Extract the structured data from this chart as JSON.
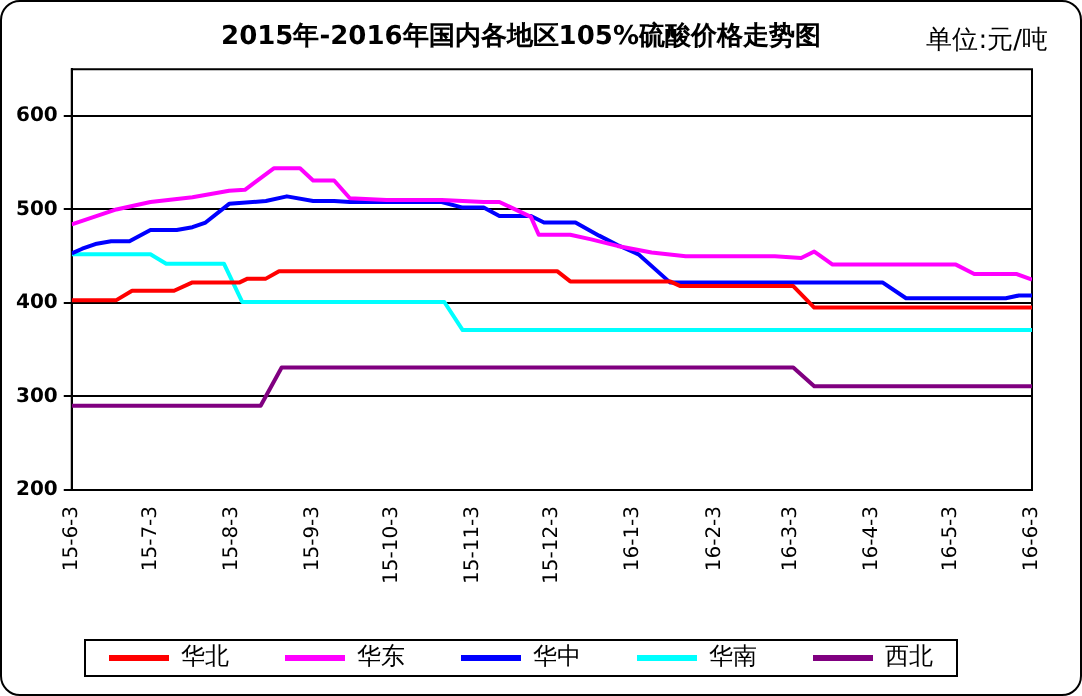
{
  "chart_data": {
    "type": "line",
    "title": "2015年-2016年国内各地区105%硫酸价格走势图",
    "annotations": [
      "单位:元/吨"
    ],
    "xlim": [
      "2015-06-03",
      "2016-06-03"
    ],
    "xticks": [
      {
        "value": "2015-06-03",
        "label": "15-6-3"
      },
      {
        "value": "2015-07-03",
        "label": "15-7-3"
      },
      {
        "value": "2015-08-03",
        "label": "15-8-3"
      },
      {
        "value": "2015-09-03",
        "label": "15-9-3"
      },
      {
        "value": "2015-10-03",
        "label": "15-10-3"
      },
      {
        "value": "2015-11-03",
        "label": "15-11-3"
      },
      {
        "value": "2015-12-03",
        "label": "15-12-3"
      },
      {
        "value": "2016-01-03",
        "label": "16-1-3"
      },
      {
        "value": "2016-02-03",
        "label": "16-2-3"
      },
      {
        "value": "2016-03-03",
        "label": "16-3-3"
      },
      {
        "value": "2016-04-03",
        "label": "16-4-3"
      },
      {
        "value": "2016-05-03",
        "label": "16-5-3"
      },
      {
        "value": "2016-06-03",
        "label": "16-6-3"
      }
    ],
    "ylim": [
      200,
      650
    ],
    "yticks": [
      200,
      300,
      400,
      500,
      600
    ],
    "grid": "y",
    "legend": "bottom",
    "marker": "none",
    "line_style": "solid",
    "series": [
      {
        "name": "华北",
        "color": "#ff0000",
        "x": [
          "2015-06-03",
          "2015-06-20",
          "2015-06-26",
          "2015-07-12",
          "2015-07-19",
          "2015-08-06",
          "2015-08-09",
          "2015-08-16",
          "2015-08-21",
          "2015-12-05",
          "2015-12-10",
          "2016-01-17",
          "2016-01-21",
          "2016-03-04",
          "2016-03-12",
          "2016-06-03"
        ],
        "values": [
          403,
          403,
          413,
          413,
          422,
          422,
          426,
          426,
          434,
          434,
          423,
          423,
          418,
          418,
          395,
          395
        ]
      },
      {
        "name": "华东",
        "color": "#ff00ff",
        "x": [
          "2015-06-03",
          "2015-06-20",
          "2015-07-03",
          "2015-07-19",
          "2015-08-02",
          "2015-08-08",
          "2015-08-19",
          "2015-08-29",
          "2015-09-03",
          "2015-09-11",
          "2015-09-17",
          "2015-10-01",
          "2015-10-22",
          "2015-11-07",
          "2015-11-13",
          "2015-11-25",
          "2015-11-28",
          "2015-12-10",
          "2015-12-18",
          "2015-12-28",
          "2016-01-10",
          "2016-01-23",
          "2016-02-26",
          "2016-03-07",
          "2016-03-12",
          "2016-03-19",
          "2016-05-05",
          "2016-05-12",
          "2016-05-28",
          "2016-06-03"
        ],
        "values": [
          484,
          500,
          508,
          513,
          520,
          521,
          544,
          544,
          531,
          531,
          512,
          510,
          510,
          508,
          508,
          492,
          473,
          473,
          468,
          461,
          454,
          450,
          450,
          448,
          455,
          441,
          441,
          431,
          431,
          425
        ]
      },
      {
        "name": "华中",
        "color": "#0000ff",
        "x": [
          "2015-06-03",
          "2015-06-07",
          "2015-06-12",
          "2015-06-18",
          "2015-06-25",
          "2015-07-03",
          "2015-07-13",
          "2015-07-19",
          "2015-07-24",
          "2015-08-02",
          "2015-08-16",
          "2015-08-24",
          "2015-09-03",
          "2015-09-11",
          "2015-09-17",
          "2015-10-22",
          "2015-10-30",
          "2015-11-07",
          "2015-11-13",
          "2015-11-25",
          "2015-11-30",
          "2015-12-12",
          "2015-12-21",
          "2015-12-28",
          "2016-01-05",
          "2016-01-17",
          "2016-04-07",
          "2016-04-16",
          "2016-05-24",
          "2016-05-29",
          "2016-06-03"
        ],
        "values": [
          453,
          458,
          463,
          466,
          466,
          478,
          478,
          481,
          486,
          506,
          509,
          514,
          509,
          509,
          508,
          508,
          502,
          502,
          493,
          493,
          486,
          486,
          472,
          462,
          452,
          422,
          422,
          405,
          405,
          408,
          408
        ]
      },
      {
        "name": "华南",
        "color": "#00ffff",
        "x": [
          "2015-06-03",
          "2015-07-03",
          "2015-07-09",
          "2015-07-31",
          "2015-08-07",
          "2015-10-23",
          "2015-10-30",
          "2016-06-03"
        ],
        "values": [
          452,
          452,
          442,
          442,
          401,
          401,
          371,
          371
        ]
      },
      {
        "name": "西北",
        "color": "#800080",
        "x": [
          "2015-06-03",
          "2015-08-14",
          "2015-08-22",
          "2016-03-04",
          "2016-03-12",
          "2016-06-03"
        ],
        "values": [
          290,
          290,
          331,
          331,
          311,
          311
        ]
      }
    ]
  }
}
